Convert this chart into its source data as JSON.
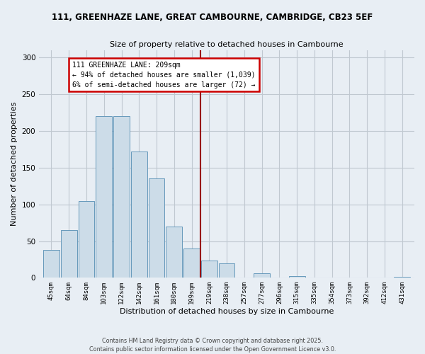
{
  "title_line1": "111, GREENHAZE LANE, GREAT CAMBOURNE, CAMBRIDGE, CB23 5EF",
  "title_line2": "Size of property relative to detached houses in Cambourne",
  "xlabel": "Distribution of detached houses by size in Cambourne",
  "ylabel": "Number of detached properties",
  "categories": [
    "45sqm",
    "64sqm",
    "84sqm",
    "103sqm",
    "122sqm",
    "142sqm",
    "161sqm",
    "180sqm",
    "199sqm",
    "219sqm",
    "238sqm",
    "257sqm",
    "277sqm",
    "296sqm",
    "315sqm",
    "335sqm",
    "354sqm",
    "373sqm",
    "392sqm",
    "412sqm",
    "431sqm"
  ],
  "values": [
    38,
    65,
    105,
    220,
    220,
    172,
    135,
    70,
    40,
    23,
    20,
    0,
    6,
    0,
    2,
    0,
    0,
    0,
    0,
    0,
    1
  ],
  "bar_color": "#ccdce8",
  "bar_edge_color": "#6699bb",
  "ylim": [
    0,
    310
  ],
  "yticks": [
    0,
    50,
    100,
    150,
    200,
    250,
    300
  ],
  "vline_x_index": 9,
  "annotation_title": "111 GREENHAZE LANE: 209sqm",
  "annotation_line2": "← 94% of detached houses are smaller (1,039)",
  "annotation_line3": "6% of semi-detached houses are larger (72) →",
  "vline_color": "#990000",
  "annotation_box_color": "#ffffff",
  "annotation_border_color": "#cc0000",
  "footer_line1": "Contains HM Land Registry data © Crown copyright and database right 2025.",
  "footer_line2": "Contains public sector information licensed under the Open Government Licence v3.0.",
  "background_color": "#e8eef4",
  "plot_background_color": "#e8eef4",
  "grid_color": "#c0c8d0"
}
